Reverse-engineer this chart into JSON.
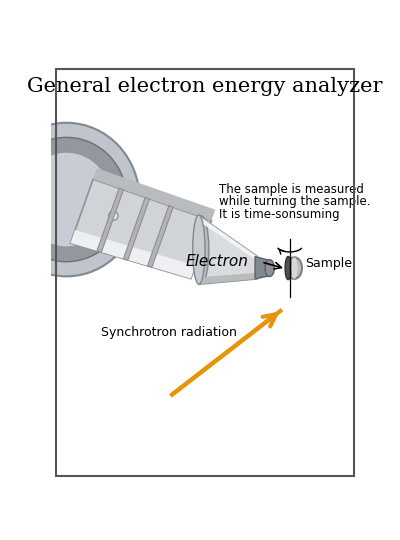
{
  "title": "General electron energy analyzer",
  "title_fontsize": 15,
  "text_annotation1_line1": "The sample is measured",
  "text_annotation1_line2": "while turning the sample.",
  "text_annotation1_line3": "It is time-sonsuming",
  "text_electron": "Electron",
  "text_sample": "Sample",
  "text_synchrotron": "Synchrotron radiation",
  "bg_color": "#ffffff",
  "border_color": "#555555",
  "arrow_color": "#e8940a",
  "arrow_color_dark": "#c07000"
}
